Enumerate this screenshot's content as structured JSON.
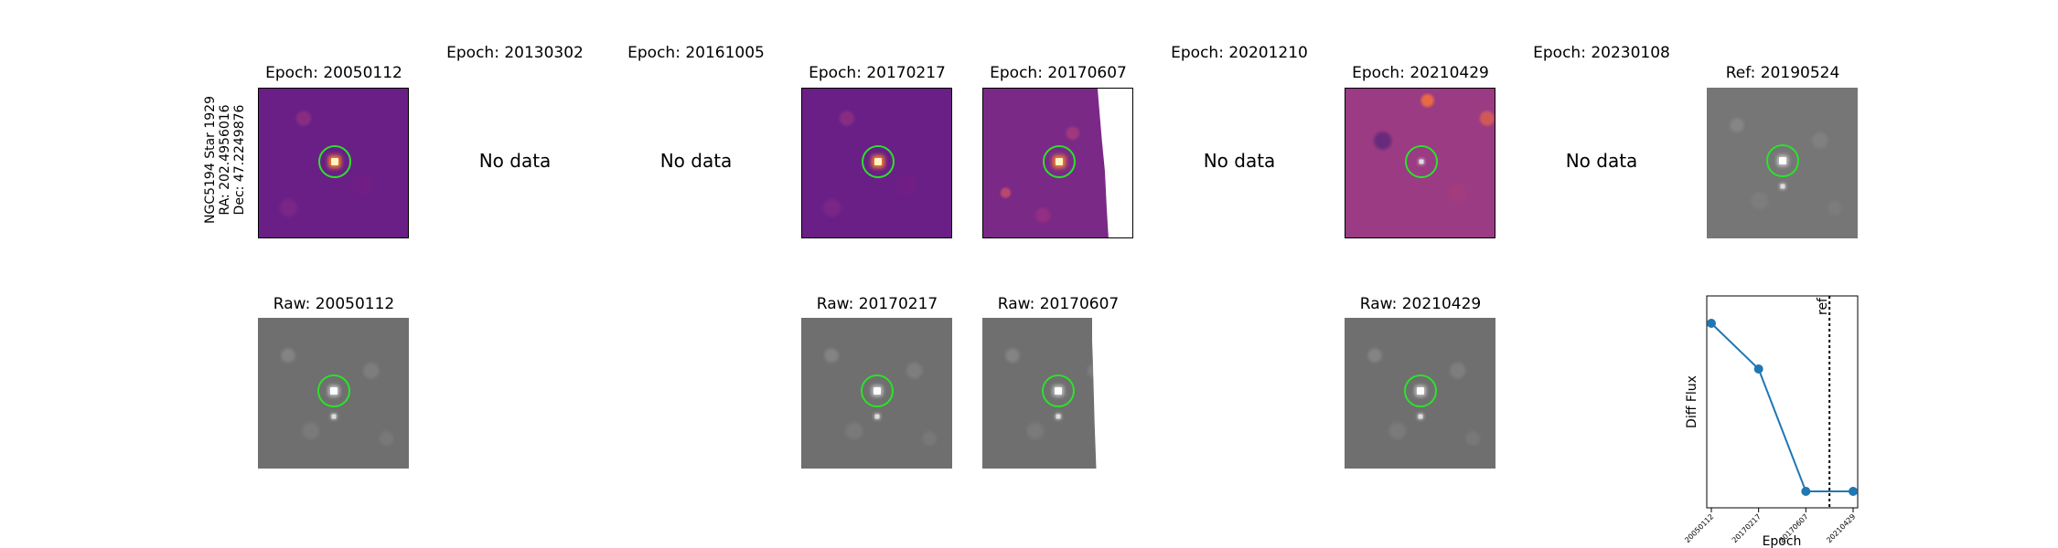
{
  "star_label": {
    "line1": "NGC5194 Star 1929",
    "line2": "RA: 202.4956016",
    "line3": "Dec: 47.2249876"
  },
  "top_row": {
    "p1": {
      "title": "Epoch: 20050112"
    },
    "p2": {
      "title": "Epoch: 20130302",
      "message": "No data"
    },
    "p3": {
      "title": "Epoch: 20161005",
      "message": "No data"
    },
    "p4": {
      "title": "Epoch: 20170217"
    },
    "p5": {
      "title": "Epoch: 20170607"
    },
    "p6": {
      "title": "Epoch: 20201210",
      "message": "No data"
    },
    "p7": {
      "title": "Epoch: 20210429"
    },
    "p8": {
      "title": "Epoch: 20230108",
      "message": "No data"
    },
    "p9": {
      "title": "Ref: 20190524"
    }
  },
  "bottom_row": {
    "r1": {
      "title": "Raw: 20050112"
    },
    "r4": {
      "title": "Raw: 20170217"
    },
    "r5": {
      "title": "Raw: 20170607"
    },
    "r7": {
      "title": "Raw: 20210429"
    }
  },
  "colors": {
    "aperture": "#2be22b",
    "line": "#1f77b4"
  },
  "chart_data": {
    "type": "line",
    "categories": [
      "20050112",
      "20170217",
      "20170607",
      "20210429"
    ],
    "values": [
      0.93,
      0.68,
      0.01,
      0.01
    ],
    "xlabel": "Epoch",
    "ylabel": "Diff Flux",
    "reference_marker": {
      "label": "ref",
      "position_between": [
        "20170607",
        "20210429"
      ],
      "fraction": 0.5
    }
  }
}
